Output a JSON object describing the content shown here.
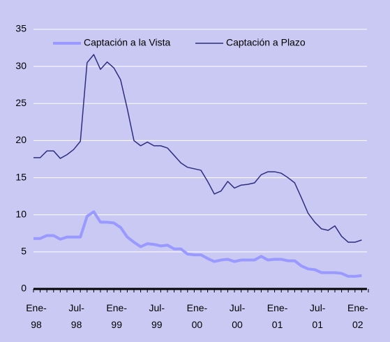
{
  "chart_data": {
    "type": "line",
    "categories": [
      "Ene-98",
      null,
      null,
      null,
      null,
      null,
      "Jul-98",
      null,
      null,
      null,
      null,
      null,
      "Ene-99",
      null,
      null,
      null,
      null,
      null,
      "Jul-99",
      null,
      null,
      null,
      null,
      null,
      "Ene-00",
      null,
      null,
      null,
      null,
      null,
      "Jul-00",
      null,
      null,
      null,
      null,
      null,
      "Ene-01",
      null,
      null,
      null,
      null,
      null,
      "Jul-01",
      null,
      null,
      null,
      null,
      null,
      "Ene-02",
      null
    ],
    "series": [
      {
        "name": "Captación a la Vista",
        "color": "#9999ff",
        "values": [
          6.8,
          6.8,
          7.2,
          7.2,
          6.7,
          7.0,
          7.0,
          7.0,
          9.8,
          10.4,
          9.0,
          9.0,
          8.9,
          8.3,
          7.0,
          6.3,
          5.7,
          6.1,
          6.0,
          5.8,
          5.9,
          5.4,
          5.4,
          4.7,
          4.6,
          4.6,
          4.1,
          3.7,
          3.9,
          4.0,
          3.7,
          3.9,
          3.9,
          3.9,
          4.4,
          3.9,
          4.0,
          4.0,
          3.8,
          3.8,
          3.1,
          2.7,
          2.6,
          2.2,
          2.2,
          2.2,
          2.1,
          1.7,
          1.7,
          1.8
        ]
      },
      {
        "name": "Captación a Plazo",
        "color": "#2e2e80",
        "values": [
          17.7,
          17.7,
          18.6,
          18.6,
          17.6,
          18.1,
          18.8,
          19.9,
          30.5,
          31.6,
          29.6,
          30.6,
          29.8,
          28.2,
          24.3,
          20.0,
          19.3,
          19.8,
          19.3,
          19.3,
          19.0,
          18.0,
          17.0,
          16.4,
          16.2,
          16.0,
          14.5,
          12.8,
          13.2,
          14.5,
          13.6,
          14.0,
          14.1,
          14.3,
          15.4,
          15.8,
          15.8,
          15.6,
          15.0,
          14.3,
          12.3,
          10.2,
          9.0,
          8.1,
          7.9,
          8.5,
          7.1,
          6.3,
          6.3,
          6.6
        ]
      }
    ],
    "ylim": [
      0,
      35
    ],
    "yticks": [
      0,
      5,
      10,
      15,
      20,
      25,
      30,
      35
    ],
    "grid": true,
    "legend": "top"
  }
}
